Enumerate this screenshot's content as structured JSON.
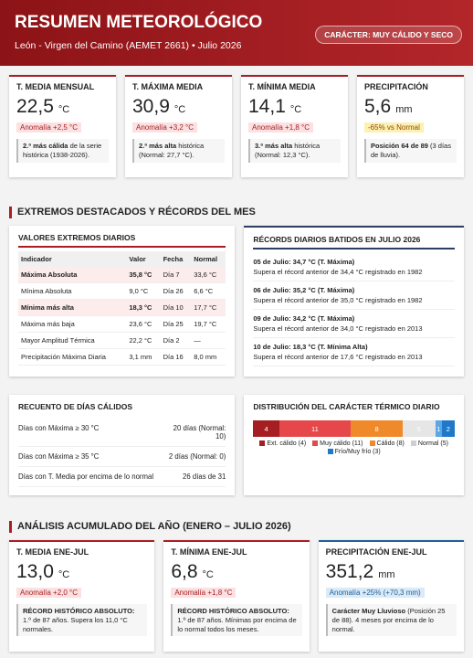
{
  "header": {
    "title": "RESUMEN METEOROLÓGICO",
    "subtitle": "León - Virgen del Camino (AEMET 2661) • Julio 2026",
    "badge": "CARÁCTER: MUY CÁLIDO Y SECO"
  },
  "kpis": [
    {
      "label": "T. MEDIA MENSUAL",
      "value": "22,5",
      "unit": "°C",
      "anomaly": "Anomalía +2,5 °C",
      "note_bold": "2.ª más cálida",
      "note": " de la serie histórica (1938-2026)."
    },
    {
      "label": "T. MÁXIMA MEDIA",
      "value": "30,9",
      "unit": "°C",
      "anomaly": "Anomalía +3,2 °C",
      "note_bold": "2.ª más alta",
      "note": " histórica (Normal: 27,7 °C)."
    },
    {
      "label": "T. MÍNIMA MEDIA",
      "value": "14,1",
      "unit": "°C",
      "anomaly": "Anomalía +1,8 °C",
      "note_bold": "3.ª más alta",
      "note": " histórica (Normal: 12,3 °C)."
    },
    {
      "label": "PRECIPITACIÓN",
      "value": "5,6",
      "unit": "mm",
      "anomaly": "-65% vs Normal",
      "note_bold": "Posición 64 de 89",
      "note": " (3 días de lluvia)."
    }
  ],
  "section1": "EXTREMOS DESTACADOS Y RÉCORDS DEL MES",
  "extremes": {
    "title": "VALORES EXTREMOS DIARIOS",
    "headers": [
      "Indicador",
      "Valor",
      "Fecha",
      "Normal"
    ],
    "rows": [
      [
        "Máxima Absoluta",
        "35,8 °C",
        "Día 7",
        "33,6 °C"
      ],
      [
        "Mínima Absoluta",
        "9,0 °C",
        "Día 26",
        "6,6 °C"
      ],
      [
        "Mínima más alta",
        "18,3 °C",
        "Día 10",
        "17,7 °C"
      ],
      [
        "Máxima más baja",
        "23,6 °C",
        "Día 25",
        "19,7 °C"
      ],
      [
        "Mayor Amplitud Térmica",
        "22,2 °C",
        "Día 2",
        "—"
      ],
      [
        "Precipitación Máxima Diaria",
        "3,1 mm",
        "Día 16",
        "8,0 mm"
      ]
    ]
  },
  "records": {
    "title": "RÉCORDS DIARIOS BATIDOS EN JULIO 2026",
    "items": [
      {
        "head": "05 de Julio: 34,7 °C (T. Máxima)",
        "detail": "Supera el récord anterior de 34,4 °C registrado en 1982"
      },
      {
        "head": "06 de Julio: 35,2 °C (T. Máxima)",
        "detail": "Supera el récord anterior de 35,0 °C registrado en 1982"
      },
      {
        "head": "09 de Julio: 34,2 °C (T. Máxima)",
        "detail": "Supera el récord anterior de 34,0 °C registrado en 2013"
      },
      {
        "head": "10 de Julio: 18,3 °C (T. Mínima Alta)",
        "detail": "Supera el récord anterior de 17,6 °C registrado en 2013"
      }
    ]
  },
  "warm_days": {
    "title": "RECUENTO DE DÍAS CÁLIDOS",
    "rows": [
      [
        "Días con Máxima ≥ 30 °C",
        "20 días (Normal: 10)"
      ],
      [
        "Días con Máxima ≥ 35 °C",
        "2 días (Normal: 0)"
      ],
      [
        "Días con T. Media por encima de lo normal",
        "26 días de 31"
      ]
    ]
  },
  "distribution": {
    "title": "DISTRIBUCIÓN DEL CARÁCTER TÉRMICO DIARIO",
    "segments": [
      {
        "value": 4,
        "color": "#a51e22"
      },
      {
        "value": 11,
        "color": "#e5474b"
      },
      {
        "value": 8,
        "color": "#f0892a"
      },
      {
        "value": 5,
        "color": "#e6e6e6"
      },
      {
        "value": 1,
        "color": "#5aa7e6"
      },
      {
        "value": 2,
        "color": "#1f78c8"
      }
    ],
    "legend": [
      {
        "name": "Ext. cálido (4)",
        "color": "#a51e22"
      },
      {
        "name": "Muy cálido (11)",
        "color": "#e5474b"
      },
      {
        "name": "Cálido (8)",
        "color": "#f0892a"
      },
      {
        "name": "Normal (5)",
        "color": "#cfcfcf"
      },
      {
        "name": "Frío/Muy frío (3)",
        "color": "#1f78c8"
      }
    ]
  },
  "section2": "ANÁLISIS ACUMULADO DEL AÑO (ENERO – JULIO 2026)",
  "annual": [
    {
      "label": "T. MEDIA ENE-JUL",
      "value": "13,0",
      "unit": "°C",
      "anomaly": "Anomalía +2,0 °C",
      "note_bold": "RÉCORD HISTÓRICO ABSOLUTO:",
      "note": " 1.º de 87 años. Supera los 11,0 °C normales."
    },
    {
      "label": "T. MÍNIMA ENE-JUL",
      "value": "6,8",
      "unit": "°C",
      "anomaly": "Anomalía +1,8 °C",
      "note_bold": "RÉCORD HISTÓRICO ABSOLUTO:",
      "note": " 1.º de 87 años. Mínimas por encima de lo normal todos los meses."
    },
    {
      "label": "PRECIPITACIÓN ENE-JUL",
      "value": "351,2",
      "unit": "mm",
      "anomaly": "Anomalía +25% (+70,3 mm)",
      "note_bold": "Carácter Muy Lluvioso",
      "note": " (Posición 25 de 88). 4 meses por encima de lo normal."
    }
  ]
}
